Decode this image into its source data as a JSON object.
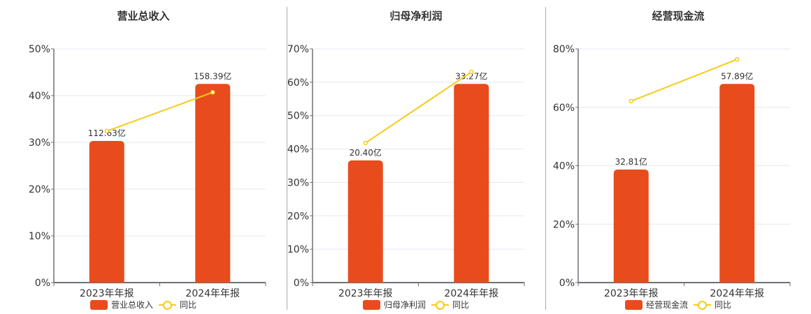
{
  "colors": {
    "bar": "#E84C1C",
    "line": "#F5CC1A",
    "grid": "#E3E8F0",
    "axis": "#6E7079",
    "text": "#333333"
  },
  "legend": {
    "line_label": "同比"
  },
  "charts": [
    {
      "title": "营业总收入",
      "bar_legend": "营业总收入",
      "ymax": 50,
      "ticks": [
        "0%",
        "10%",
        "20%",
        "30%",
        "40%",
        "50%"
      ]
    },
    {
      "title": "归母净利润",
      "bar_legend": "归母净利润",
      "ymax": 70,
      "ticks": [
        "0%",
        "10%",
        "20%",
        "30%",
        "40%",
        "50%",
        "60%",
        "70%"
      ]
    },
    {
      "title": "经营现金流",
      "bar_legend": "经营现金流",
      "ymax": 80,
      "ticks": [
        "0%",
        "20%",
        "40%",
        "60%",
        "80%"
      ]
    }
  ],
  "chart_data": [
    {
      "type": "bar",
      "title": "营业总收入",
      "categories": [
        "2023年年报",
        "2024年年报"
      ],
      "series": [
        {
          "name": "营业总收入",
          "type": "bar",
          "bar_heights_pct": [
            30.3,
            42.5
          ],
          "labels": [
            "112.63亿",
            "158.39亿"
          ],
          "values_yi": [
            112.63,
            158.39
          ]
        },
        {
          "name": "同比",
          "type": "line",
          "values": [
            32.4,
            40.7
          ]
        }
      ],
      "ylim": [
        0,
        50
      ],
      "yticks": [
        "0%",
        "10%",
        "20%",
        "30%",
        "40%",
        "50%"
      ],
      "grid": true,
      "legend_position": "bottom"
    },
    {
      "type": "bar",
      "title": "归母净利润",
      "categories": [
        "2023年年报",
        "2024年年报"
      ],
      "series": [
        {
          "name": "归母净利润",
          "type": "bar",
          "bar_heights_pct": [
            36.6,
            59.5
          ],
          "labels": [
            "20.40亿",
            "33.27亿"
          ],
          "values_yi": [
            20.4,
            33.27
          ]
        },
        {
          "name": "同比",
          "type": "line",
          "values": [
            41.8,
            63.1
          ]
        }
      ],
      "ylim": [
        0,
        70
      ],
      "yticks": [
        "0%",
        "10%",
        "20%",
        "30%",
        "40%",
        "50%",
        "60%",
        "70%"
      ],
      "grid": true,
      "legend_position": "bottom"
    },
    {
      "type": "bar",
      "title": "经营现金流",
      "categories": [
        "2023年年报",
        "2024年年报"
      ],
      "series": [
        {
          "name": "经营现金流",
          "type": "bar",
          "bar_heights_pct": [
            38.7,
            68.0
          ],
          "labels": [
            "32.81亿",
            "57.89亿"
          ],
          "values_yi": [
            32.81,
            57.89
          ]
        },
        {
          "name": "同比",
          "type": "line",
          "values": [
            62.1,
            76.4
          ]
        }
      ],
      "ylim": [
        0,
        80
      ],
      "yticks": [
        "0%",
        "20%",
        "40%",
        "60%",
        "80%"
      ],
      "grid": true,
      "legend_position": "bottom"
    }
  ]
}
